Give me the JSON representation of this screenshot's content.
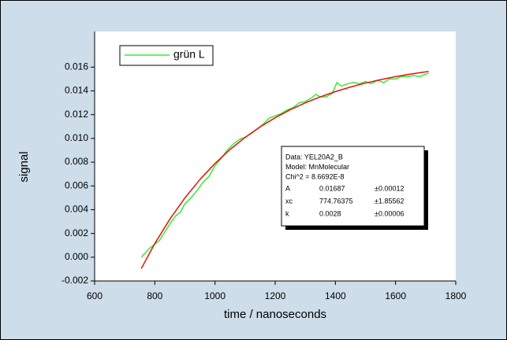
{
  "chart_data": {
    "type": "line",
    "xlabel": "time / nanoseconds",
    "ylabel": "signal",
    "xlim": [
      600,
      1800
    ],
    "xticks": [
      600,
      800,
      1000,
      1200,
      1400,
      1600,
      1800
    ],
    "ylim": [
      -0.002,
      0.019
    ],
    "yticks": [
      -0.002,
      {
        "value": 0,
        "label": "0.000"
      },
      0.002,
      0.004,
      0.006,
      0.008,
      {
        "value": 0.01,
        "label": "0.010"
      },
      0.012,
      0.014,
      0.016
    ],
    "grid": false,
    "legend": "upper left",
    "series": [
      {
        "name": "grün L",
        "color": "#33ee33",
        "x": [
          755,
          770,
          785,
          800,
          815,
          830,
          850,
          870,
          885,
          900,
          920,
          940,
          960,
          980,
          1000,
          1020,
          1040,
          1060,
          1080,
          1100,
          1120,
          1140,
          1160,
          1180,
          1200,
          1220,
          1240,
          1260,
          1280,
          1300,
          1320,
          1335,
          1350,
          1370,
          1390,
          1405,
          1420,
          1440,
          1460,
          1480,
          1500,
          1520,
          1540,
          1560,
          1580,
          1600,
          1620,
          1640,
          1660,
          1680,
          1700,
          1710
        ],
        "values": [
          0.0,
          0.0004,
          0.0008,
          0.0011,
          0.0014,
          0.002,
          0.0028,
          0.0035,
          0.0038,
          0.0045,
          0.005,
          0.0056,
          0.0063,
          0.0068,
          0.0077,
          0.0083,
          0.009,
          0.0095,
          0.0099,
          0.0101,
          0.0104,
          0.0108,
          0.0112,
          0.0117,
          0.0119,
          0.0121,
          0.0124,
          0.0126,
          0.013,
          0.0131,
          0.0134,
          0.0137,
          0.0135,
          0.0135,
          0.0138,
          0.0147,
          0.0144,
          0.0146,
          0.0147,
          0.0146,
          0.0148,
          0.0146,
          0.0149,
          0.0147,
          0.015,
          0.015,
          0.0152,
          0.0152,
          0.0153,
          0.0152,
          0.0154,
          0.0155
        ]
      },
      {
        "color": "#e81010",
        "x": [
          755,
          800,
          850,
          900,
          950,
          1000,
          1050,
          1100,
          1150,
          1200,
          1250,
          1300,
          1350,
          1400,
          1450,
          1500,
          1550,
          1600,
          1650,
          1710
        ],
        "values": [
          -0.00096,
          0.001151,
          0.003204,
          0.00499,
          0.006542,
          0.007891,
          0.009064,
          0.010084,
          0.010971,
          0.011741,
          0.012411,
          0.012994,
          0.0135,
          0.01394,
          0.014323,
          0.014656,
          0.014945,
          0.015197,
          0.015415,
          0.01564
        ]
      }
    ],
    "annotation": {
      "lines": [
        "Data: YEL20A2_B",
        "Model: MnMolecular",
        "Chi^2 = 8.6692E-8"
      ],
      "table": [
        [
          "A",
          "0.01687",
          "±0.00012"
        ],
        [
          "xc",
          "774.76375",
          "±1.85562"
        ],
        [
          "k",
          "0.0028",
          "±0.00006"
        ]
      ]
    }
  }
}
